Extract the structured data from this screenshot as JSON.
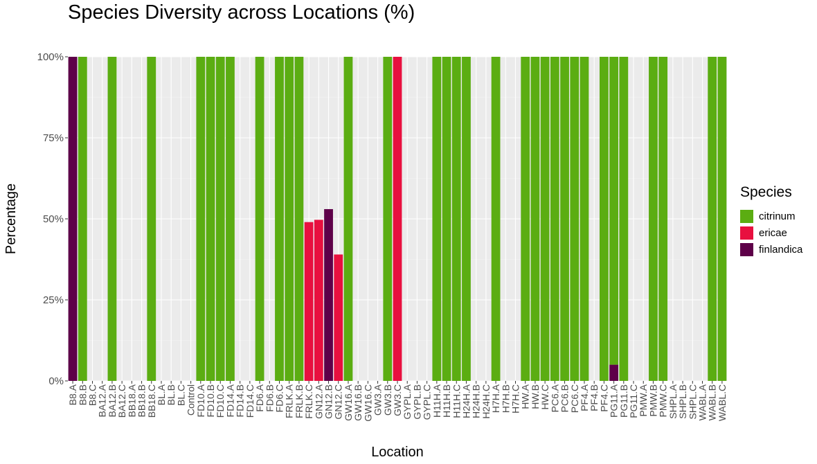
{
  "chart_data": {
    "type": "bar",
    "stacked": true,
    "title": "Species Diversity across Locations (%)",
    "xlabel": "Location",
    "ylabel": "Percentage",
    "ylim": [
      0,
      100
    ],
    "yticks": [
      "0%",
      "25%",
      "50%",
      "75%",
      "100%"
    ],
    "ytick_values": [
      0,
      25,
      50,
      75,
      100
    ],
    "grid": true,
    "legend_title": "Species",
    "legend_position": "right",
    "categories": [
      "B8.A",
      "B8.B",
      "B8.C",
      "BA12.A",
      "BA12.B",
      "BA12.C",
      "BB18.A",
      "BB18.B",
      "BB18.C",
      "BL.A",
      "BL.B",
      "BL.C",
      "Control",
      "FD10.A",
      "FD10.B",
      "FD10.C",
      "FD14.A",
      "FD14.B",
      "FD14.C",
      "FD6.A",
      "FD6.B",
      "FD6.C",
      "FRLK.A",
      "FRLK.B",
      "FRLK.C",
      "GN12.A",
      "GN12.B",
      "GN12.C",
      "GW16.A",
      "GW16.B",
      "GW16.C",
      "GW3.A",
      "GW3.B",
      "GW3.C",
      "GYPL.A",
      "GYPL.B",
      "GYPL.C",
      "H11H.A",
      "H11H.B",
      "H11H.C",
      "H24H.A",
      "H24H.B",
      "H24H.C",
      "H7H.A",
      "H7H.B",
      "H7H.C",
      "HW.A",
      "HW.B",
      "HW.C",
      "PC6.A",
      "PC6.B",
      "PC6.C",
      "PF4.A",
      "PF4.B",
      "PF4.C",
      "PG11.A",
      "PG11.B",
      "PG11.C",
      "PMW.A",
      "PMW.B",
      "PMW.C",
      "SHPL.A",
      "SHPL.B",
      "SHPL.C",
      "WABL.A",
      "WABL.B",
      "WABL.C"
    ],
    "series": [
      {
        "name": "finlandica",
        "color": "#5E0049",
        "values": [
          100,
          0,
          0,
          0,
          0,
          0,
          0,
          0,
          0,
          0,
          0,
          0,
          0,
          0,
          0,
          0,
          0,
          0,
          0,
          0,
          0,
          0,
          0,
          0,
          0,
          0,
          53,
          0,
          0,
          0,
          0,
          0,
          0,
          0,
          0,
          0,
          0,
          0,
          0,
          0,
          0,
          0,
          0,
          0,
          0,
          0,
          0,
          0,
          0,
          0,
          0,
          0,
          0,
          0,
          0,
          5,
          0,
          0,
          0,
          0,
          0,
          0,
          0,
          0,
          0,
          0,
          0
        ]
      },
      {
        "name": "ericae",
        "color": "#E8103F",
        "values": [
          0,
          0,
          0,
          0,
          0,
          0,
          0,
          0,
          0,
          0,
          0,
          0,
          0,
          0,
          0,
          0,
          0,
          0,
          0,
          0,
          0,
          0,
          0,
          0,
          49,
          49.7,
          0,
          39,
          0,
          0,
          0,
          0,
          0,
          100,
          0,
          0,
          0,
          0,
          0,
          0,
          0,
          0,
          0,
          0,
          0,
          0,
          0,
          0,
          0,
          0,
          0,
          0,
          0,
          0,
          0,
          0,
          0,
          0,
          0,
          0,
          0,
          0,
          0,
          0,
          0,
          0,
          0
        ]
      },
      {
        "name": "citrinum",
        "color": "#5BAD12",
        "values": [
          0,
          100,
          0,
          0,
          100,
          0,
          0,
          0,
          100,
          0,
          0,
          0,
          0,
          100,
          100,
          100,
          100,
          0,
          0,
          100,
          0,
          100,
          100,
          100,
          0,
          0,
          0,
          0,
          100,
          0,
          0,
          0,
          100,
          0,
          0,
          0,
          0,
          100,
          100,
          100,
          100,
          0,
          0,
          100,
          0,
          0,
          100,
          100,
          100,
          100,
          100,
          100,
          100,
          0,
          100,
          95,
          100,
          0,
          0,
          100,
          100,
          0,
          0,
          0,
          0,
          100,
          100
        ]
      }
    ],
    "legend_order": [
      "citrinum",
      "ericae",
      "finlandica"
    ]
  }
}
